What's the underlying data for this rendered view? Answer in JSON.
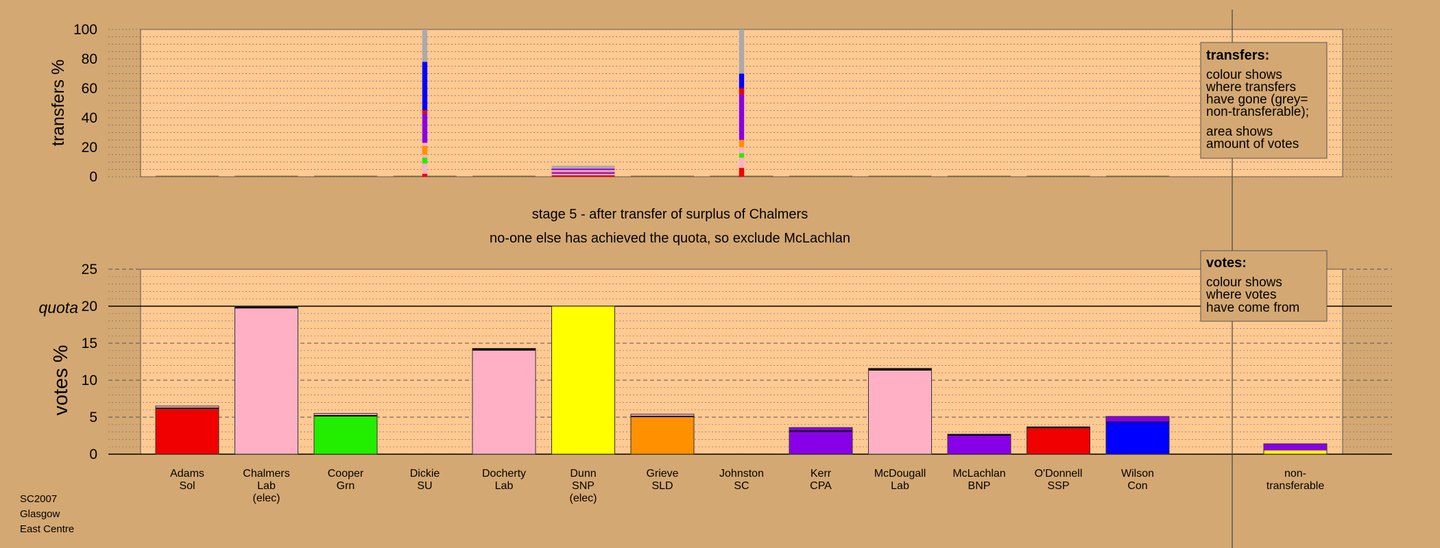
{
  "chart_data": {
    "type": "bar",
    "stage_title": "stage 5 - after transfer of surplus of Chalmers",
    "stage_subtitle": "no-one else has achieved the quota, so exclude McLachlan",
    "source_label": [
      "SC2007",
      "Glasgow",
      "East Centre"
    ],
    "colors": {
      "background": "#D4A872",
      "panel": "#FFC992",
      "red": "#F00000",
      "pink": "#FFB0C4",
      "green": "#22EE00",
      "yellow": "#FFFF00",
      "orange": "#FF9000",
      "purple": "#8800E8",
      "blue": "#0000FF",
      "grey": "#AAAAAA",
      "black": "#000000"
    },
    "categories": [
      {
        "name": "Adams",
        "party": "Sol",
        "note": ""
      },
      {
        "name": "Chalmers",
        "party": "Lab",
        "note": "(elec)"
      },
      {
        "name": "Cooper",
        "party": "Grn",
        "note": ""
      },
      {
        "name": "Dickie",
        "party": "SU",
        "note": ""
      },
      {
        "name": "Docherty",
        "party": "Lab",
        "note": ""
      },
      {
        "name": "Dunn",
        "party": "SNP",
        "note": "(elec)"
      },
      {
        "name": "Grieve",
        "party": "SLD",
        "note": ""
      },
      {
        "name": "Johnston",
        "party": "SC",
        "note": ""
      },
      {
        "name": "Kerr",
        "party": "CPA",
        "note": ""
      },
      {
        "name": "McDougall",
        "party": "Lab",
        "note": ""
      },
      {
        "name": "McLachlan",
        "party": "BNP",
        "note": ""
      },
      {
        "name": "O'Donnell",
        "party": "SSP",
        "note": ""
      },
      {
        "name": "Wilson",
        "party": "Con",
        "note": ""
      }
    ],
    "nontransferable_label": [
      "non-",
      "transferable"
    ],
    "transfers_chart": {
      "ylabel": "transfers %",
      "ylim": [
        0,
        100
      ],
      "yticks": [
        0,
        20,
        40,
        60,
        80,
        100
      ],
      "legend": {
        "title": "transfers:",
        "lines": [
          "colour shows",
          "where transfers",
          "have gone (grey=",
          "non-transferable);",
          "",
          "area shows",
          "amount of votes"
        ]
      },
      "columns": [
        {
          "category": "Dickie",
          "width_fraction": 0.08,
          "segments": [
            {
              "color": "red",
              "value": 2
            },
            {
              "color": "pink",
              "value": 7
            },
            {
              "color": "green",
              "value": 4
            },
            {
              "color": "pink",
              "value": 2
            },
            {
              "color": "orange",
              "value": 6
            },
            {
              "color": "pink",
              "value": 2
            },
            {
              "color": "purple",
              "value": 20
            },
            {
              "color": "red",
              "value": 2
            },
            {
              "color": "blue",
              "value": 33
            },
            {
              "color": "grey",
              "value": 22
            }
          ]
        },
        {
          "category": "Dunn",
          "width_fraction": 1.0,
          "segments": [
            {
              "color": "red",
              "value": 1
            },
            {
              "color": "pink",
              "value": 1
            },
            {
              "color": "purple",
              "value": 1
            },
            {
              "color": "orange",
              "value": 0.5
            },
            {
              "color": "pink",
              "value": 1
            },
            {
              "color": "purple",
              "value": 1
            },
            {
              "color": "grey",
              "value": 2
            }
          ]
        },
        {
          "category": "Johnston",
          "width_fraction": 0.08,
          "segments": [
            {
              "color": "red",
              "value": 6
            },
            {
              "color": "pink",
              "value": 7
            },
            {
              "color": "green",
              "value": 3
            },
            {
              "color": "pink",
              "value": 4
            },
            {
              "color": "orange",
              "value": 5
            },
            {
              "color": "purple",
              "value": 31
            },
            {
              "color": "red",
              "value": 4
            },
            {
              "color": "blue",
              "value": 10
            },
            {
              "color": "grey",
              "value": 30
            }
          ]
        }
      ]
    },
    "votes_chart": {
      "ylabel": "votes %",
      "quota_label": "quota",
      "quota": 20,
      "ylim": [
        0,
        25
      ],
      "yticks": [
        0,
        5,
        10,
        15,
        20,
        25
      ],
      "legend": {
        "title": "votes:",
        "lines": [
          "colour shows",
          "where votes",
          "have come from"
        ]
      },
      "bars": [
        {
          "category": "Adams",
          "segments": [
            {
              "color": "red",
              "value": 6.1
            },
            {
              "color": "black",
              "value": 0.2
            },
            {
              "color": "pink",
              "value": 0.2
            }
          ]
        },
        {
          "category": "Chalmers",
          "segments": [
            {
              "color": "pink",
              "value": 19.7
            },
            {
              "color": "black",
              "value": 0.3
            }
          ]
        },
        {
          "category": "Cooper",
          "segments": [
            {
              "color": "green",
              "value": 5.1
            },
            {
              "color": "black",
              "value": 0.2
            },
            {
              "color": "pink",
              "value": 0.2
            }
          ]
        },
        {
          "category": "Dickie",
          "segments": [
            {
              "color": "black",
              "value": 0.05
            }
          ]
        },
        {
          "category": "Docherty",
          "segments": [
            {
              "color": "pink",
              "value": 14.0
            },
            {
              "color": "black",
              "value": 0.3
            }
          ]
        },
        {
          "category": "Dunn",
          "segments": [
            {
              "color": "yellow",
              "value": 20.0
            }
          ]
        },
        {
          "category": "Grieve",
          "segments": [
            {
              "color": "orange",
              "value": 5.0
            },
            {
              "color": "black",
              "value": 0.2
            },
            {
              "color": "pink",
              "value": 0.2
            }
          ]
        },
        {
          "category": "Johnston",
          "segments": [
            {
              "color": "black",
              "value": 0.05
            }
          ]
        },
        {
          "category": "Kerr",
          "segments": [
            {
              "color": "purple",
              "value": 3.0
            },
            {
              "color": "black",
              "value": 0.2
            },
            {
              "color": "purple",
              "value": 0.4
            }
          ]
        },
        {
          "category": "McDougall",
          "segments": [
            {
              "color": "pink",
              "value": 11.3
            },
            {
              "color": "black",
              "value": 0.3
            }
          ]
        },
        {
          "category": "McLachlan",
          "segments": [
            {
              "color": "purple",
              "value": 2.5
            },
            {
              "color": "black",
              "value": 0.2
            }
          ]
        },
        {
          "category": "O'Donnell",
          "segments": [
            {
              "color": "red",
              "value": 3.5
            },
            {
              "color": "black",
              "value": 0.2
            }
          ]
        },
        {
          "category": "Wilson",
          "segments": [
            {
              "color": "blue",
              "value": 4.3
            },
            {
              "color": "black",
              "value": 0.1
            },
            {
              "color": "purple",
              "value": 0.7
            }
          ]
        },
        {
          "category": "non-transferable",
          "segments": [
            {
              "color": "yellow",
              "value": 0.5
            },
            {
              "color": "purple",
              "value": 0.9
            }
          ]
        }
      ]
    }
  }
}
